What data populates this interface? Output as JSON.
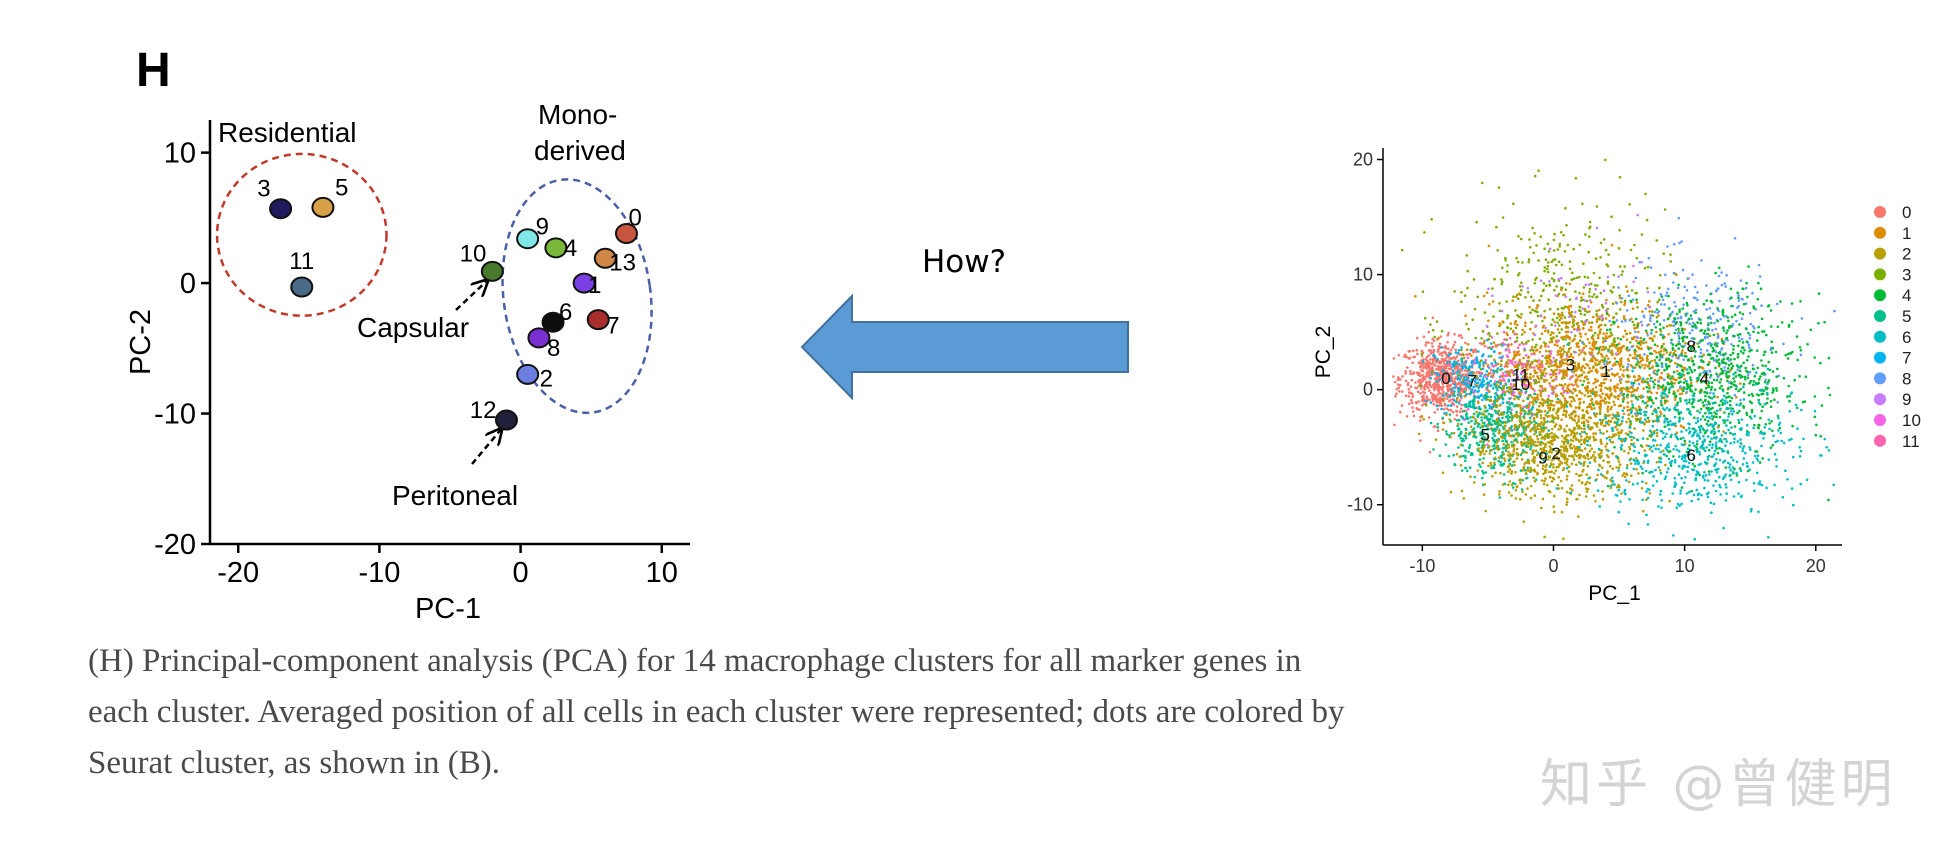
{
  "panel_letter": "H",
  "question": "How?",
  "caption": {
    "line1": "(H) Principal-component analysis (PCA) for 14 macrophage clusters for all marker genes in",
    "line2": "each cluster. Averaged position of all cells in each cluster were represented; dots are colored by",
    "line3": "Seurat cluster, as shown in (B)."
  },
  "watermark": "知乎 @曾健明",
  "colors": {
    "residential_circle": "#c0392b",
    "monoderived_circle": "#4a5fa8",
    "arrow": "#5b9bd5"
  },
  "chart_data": [
    {
      "type": "scatter",
      "xlabel": "PC-1",
      "ylabel": "PC-2",
      "xlim": [
        -22,
        12
      ],
      "ylim": [
        -20,
        12.5
      ],
      "xticks": [
        -20,
        -10,
        0,
        10
      ],
      "yticks": [
        -20,
        -10,
        0,
        10
      ],
      "grid": false,
      "points": [
        {
          "label": "0",
          "x": 7.5,
          "y": 3.8,
          "color": "#c8553d"
        },
        {
          "label": "1",
          "x": 4.5,
          "y": 0.0,
          "color": "#7b3fe4"
        },
        {
          "label": "2",
          "x": 0.5,
          "y": -7.0,
          "color": "#6b7fe0"
        },
        {
          "label": "3",
          "x": -17.0,
          "y": 5.7,
          "color": "#1f1a5e"
        },
        {
          "label": "4",
          "x": 2.5,
          "y": 2.7,
          "color": "#7ab83a"
        },
        {
          "label": "5",
          "x": -14.0,
          "y": 5.8,
          "color": "#d9a04a"
        },
        {
          "label": "6",
          "x": 2.3,
          "y": -3.0,
          "color": "#0d0d0d"
        },
        {
          "label": "7",
          "x": 5.5,
          "y": -2.8,
          "color": "#a82e2e"
        },
        {
          "label": "8",
          "x": 1.3,
          "y": -4.2,
          "color": "#7a2fd0"
        },
        {
          "label": "9",
          "x": 0.5,
          "y": 3.4,
          "color": "#7fe8e6"
        },
        {
          "label": "10",
          "x": -2.0,
          "y": 0.9,
          "color": "#4a7a2e"
        },
        {
          "label": "11",
          "x": -15.5,
          "y": -0.3,
          "color": "#4a6a8a"
        },
        {
          "label": "12",
          "x": -1.0,
          "y": -10.5,
          "color": "#20203a"
        },
        {
          "label": "13",
          "x": 6.0,
          "y": 1.9,
          "color": "#d08848"
        }
      ],
      "annotations": {
        "residential": "Residential",
        "mono_line1": "Mono-",
        "mono_line2": "derived",
        "capsular": "Capsular",
        "peritoneal": "Peritoneal"
      }
    },
    {
      "type": "scatter",
      "xlabel": "PC_1",
      "ylabel": "PC_2",
      "xlim": [
        -13,
        22
      ],
      "ylim": [
        -13.5,
        21
      ],
      "xticks": [
        -10,
        0,
        10,
        20
      ],
      "yticks": [
        -10,
        0,
        10,
        20
      ],
      "grid": false,
      "legend_position": "right",
      "legend": [
        {
          "label": "0",
          "color": "#f8766d"
        },
        {
          "label": "1",
          "color": "#de8c00"
        },
        {
          "label": "2",
          "color": "#b79f00"
        },
        {
          "label": "3",
          "color": "#7cae00"
        },
        {
          "label": "4",
          "color": "#00ba38"
        },
        {
          "label": "5",
          "color": "#00c08b"
        },
        {
          "label": "6",
          "color": "#00bfc4"
        },
        {
          "label": "7",
          "color": "#00b4f0"
        },
        {
          "label": "8",
          "color": "#619cff"
        },
        {
          "label": "9",
          "color": "#c77cff"
        },
        {
          "label": "10",
          "color": "#f564e3"
        },
        {
          "label": "11",
          "color": "#ff64b0"
        }
      ],
      "cluster_labels": [
        {
          "label": "0",
          "x": -8.2,
          "y": 1.0
        },
        {
          "label": "7",
          "x": -6.2,
          "y": 0.8
        },
        {
          "label": "11",
          "x": -2.5,
          "y": 1.3
        },
        {
          "label": "10",
          "x": -2.5,
          "y": 0.5
        },
        {
          "label": "3",
          "x": 1.3,
          "y": 2.2
        },
        {
          "label": "1",
          "x": 4.0,
          "y": 1.6
        },
        {
          "label": "8",
          "x": 10.5,
          "y": 3.8
        },
        {
          "label": "4",
          "x": 11.5,
          "y": 1.0
        },
        {
          "label": "5",
          "x": -5.2,
          "y": -3.9
        },
        {
          "label": "9",
          "x": -0.8,
          "y": -5.9
        },
        {
          "label": "2",
          "x": 0.2,
          "y": -5.5
        },
        {
          "label": "6",
          "x": 10.5,
          "y": -5.7
        }
      ],
      "clusters": [
        {
          "color": "#f8766d",
          "cx": -8.5,
          "cy": 1.0,
          "sx": 1.6,
          "sy": 1.6,
          "n": 700
        },
        {
          "color": "#00b4f0",
          "cx": -6.0,
          "cy": 0.8,
          "sx": 1.5,
          "sy": 1.5,
          "n": 260
        },
        {
          "color": "#ff64b0",
          "cx": -2.5,
          "cy": 1.5,
          "sx": 1.8,
          "sy": 1.6,
          "n": 120
        },
        {
          "color": "#f564e3",
          "cx": -2.5,
          "cy": 0.5,
          "sx": 2.0,
          "sy": 1.8,
          "n": 120
        },
        {
          "color": "#7cae00",
          "cx": 0.5,
          "cy": 6.0,
          "sx": 4.0,
          "sy": 4.8,
          "n": 550
        },
        {
          "color": "#de8c00",
          "cx": 3.0,
          "cy": 1.8,
          "sx": 4.0,
          "sy": 3.0,
          "n": 1000
        },
        {
          "color": "#619cff",
          "cx": 11.0,
          "cy": 5.0,
          "sx": 3.5,
          "sy": 3.0,
          "n": 280
        },
        {
          "color": "#00ba38",
          "cx": 12.0,
          "cy": 1.0,
          "sx": 3.5,
          "sy": 3.5,
          "n": 750
        },
        {
          "color": "#00c08b",
          "cx": -4.5,
          "cy": -3.5,
          "sx": 2.0,
          "sy": 2.0,
          "n": 450
        },
        {
          "color": "#b79f00",
          "cx": 0.5,
          "cy": -4.5,
          "sx": 3.5,
          "sy": 2.5,
          "n": 900
        },
        {
          "color": "#00bfc4",
          "cx": 10.5,
          "cy": -5.0,
          "sx": 4.0,
          "sy": 2.8,
          "n": 600
        },
        {
          "color": "#c77cff",
          "cx": 2.0,
          "cy": 7.0,
          "sx": 3.0,
          "sy": 3.0,
          "n": 60
        }
      ]
    }
  ]
}
